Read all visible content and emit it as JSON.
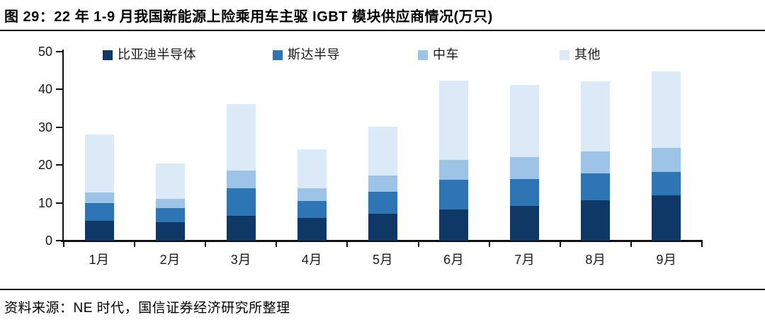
{
  "header": {
    "title": "图 29：22 年 1-9 月我国新能源上险乘用车主驱 IGBT 模块供应商情况(万只)"
  },
  "footer": {
    "source": "资料来源：NE 时代，国信证券经济研究所整理"
  },
  "colors": {
    "byd": "#0F3866",
    "star": "#2E75B6",
    "crrc": "#9DC3E6",
    "other": "#DCE9F6",
    "axis": "#111111"
  },
  "chart_data": {
    "type": "bar",
    "stacked": true,
    "title": "22 年 1-9 月我国新能源上险乘用车主驱 IGBT 模块供应商情况",
    "unit": "万只",
    "categories": [
      "1月",
      "2月",
      "3月",
      "4月",
      "5月",
      "6月",
      "7月",
      "8月",
      "9月"
    ],
    "series": [
      {
        "name": "比亚迪半导体",
        "color": "#0F3866",
        "values": [
          5.2,
          4.9,
          6.5,
          6.0,
          7.1,
          8.3,
          9.1,
          10.6,
          12.0
        ]
      },
      {
        "name": "斯达半导",
        "color": "#2E75B6",
        "values": [
          4.8,
          3.7,
          7.4,
          4.5,
          5.9,
          7.8,
          7.2,
          7.1,
          6.1
        ]
      },
      {
        "name": "中车",
        "color": "#9DC3E6",
        "values": [
          2.8,
          2.5,
          4.7,
          3.4,
          4.3,
          5.3,
          5.8,
          5.9,
          6.4
        ]
      },
      {
        "name": "其他",
        "color": "#DCE9F6",
        "values": [
          15.2,
          9.4,
          17.5,
          10.3,
          12.8,
          21.0,
          19.1,
          18.5,
          20.3
        ]
      }
    ],
    "totals": [
      28.0,
      20.5,
      36.1,
      24.2,
      30.1,
      42.4,
      41.2,
      42.1,
      44.8
    ],
    "xlabel": "",
    "ylabel": "",
    "ylim": [
      0,
      50
    ],
    "yticks": [
      0,
      10,
      20,
      30,
      40,
      50
    ],
    "grid": false,
    "legend_position": "top"
  }
}
